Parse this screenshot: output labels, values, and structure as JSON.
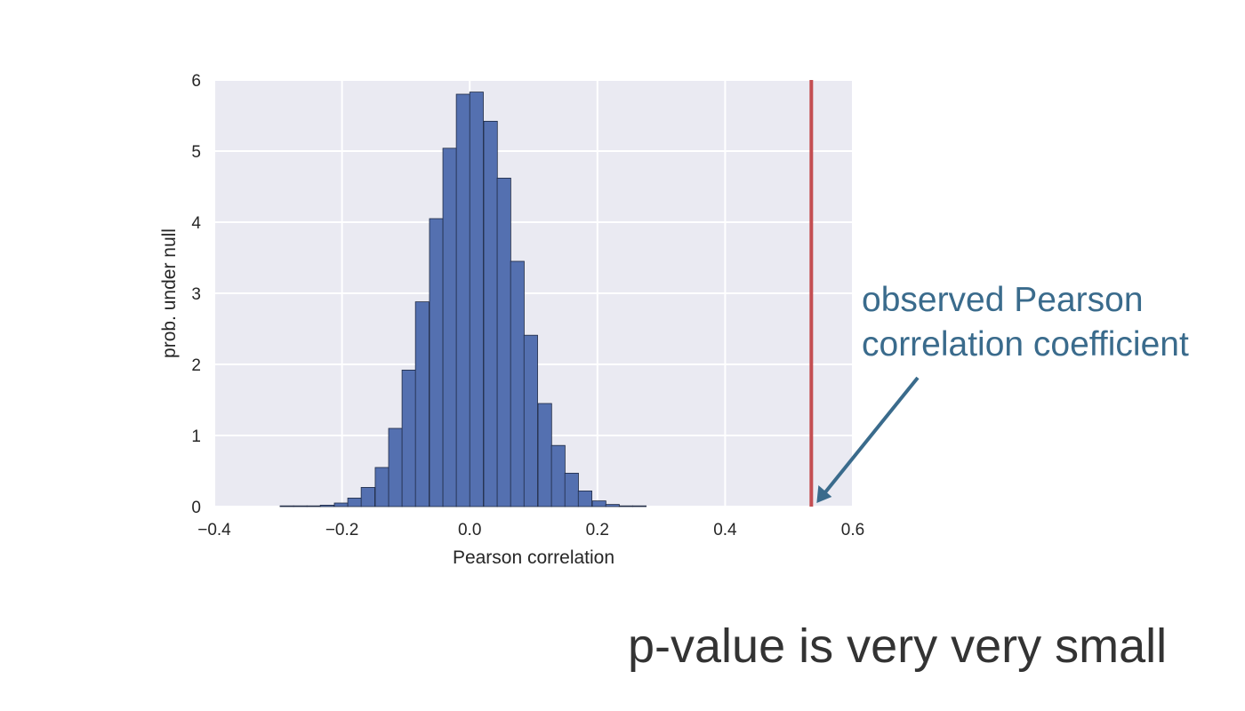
{
  "chart_data": {
    "type": "bar",
    "xlabel": "Pearson correlation",
    "ylabel": "prob. under null",
    "xlim": [
      -0.4,
      0.6
    ],
    "ylim": [
      0,
      6
    ],
    "x_ticks": [
      "−0.4",
      "−0.2",
      "0.0",
      "0.2",
      "0.4",
      "0.6"
    ],
    "y_ticks": [
      "0",
      "1",
      "2",
      "3",
      "4",
      "5",
      "6"
    ],
    "grid": true,
    "bin_width": 0.0213,
    "bins": [
      {
        "x": -0.297,
        "y": 0.01
      },
      {
        "x": -0.276,
        "y": 0.01
      },
      {
        "x": -0.255,
        "y": 0.01
      },
      {
        "x": -0.234,
        "y": 0.02
      },
      {
        "x": -0.212,
        "y": 0.05
      },
      {
        "x": -0.191,
        "y": 0.12
      },
      {
        "x": -0.17,
        "y": 0.27
      },
      {
        "x": -0.148,
        "y": 0.55
      },
      {
        "x": -0.127,
        "y": 1.1
      },
      {
        "x": -0.106,
        "y": 1.92
      },
      {
        "x": -0.085,
        "y": 2.88
      },
      {
        "x": -0.063,
        "y": 4.05
      },
      {
        "x": -0.042,
        "y": 5.04
      },
      {
        "x": -0.021,
        "y": 5.8
      },
      {
        "x": 0.0,
        "y": 5.83
      },
      {
        "x": 0.022,
        "y": 5.42
      },
      {
        "x": 0.043,
        "y": 4.62
      },
      {
        "x": 0.064,
        "y": 3.45
      },
      {
        "x": 0.085,
        "y": 2.41
      },
      {
        "x": 0.107,
        "y": 1.45
      },
      {
        "x": 0.128,
        "y": 0.86
      },
      {
        "x": 0.149,
        "y": 0.47
      },
      {
        "x": 0.17,
        "y": 0.22
      },
      {
        "x": 0.192,
        "y": 0.08
      },
      {
        "x": 0.213,
        "y": 0.03
      },
      {
        "x": 0.234,
        "y": 0.01
      },
      {
        "x": 0.255,
        "y": 0.01
      }
    ],
    "observed_value": 0.535,
    "annotation": {
      "line1": "observed Pearson",
      "line2": "correlation coefficient"
    },
    "colors": {
      "bar": "#5470b0",
      "bar_edge": "#1f2a44",
      "observed_line": "#c44e52",
      "annotation": "#3a6b8c",
      "plot_bg": "#eaeaf2",
      "grid": "#ffffff"
    }
  },
  "footer": {
    "text": "p-value is very very small"
  }
}
